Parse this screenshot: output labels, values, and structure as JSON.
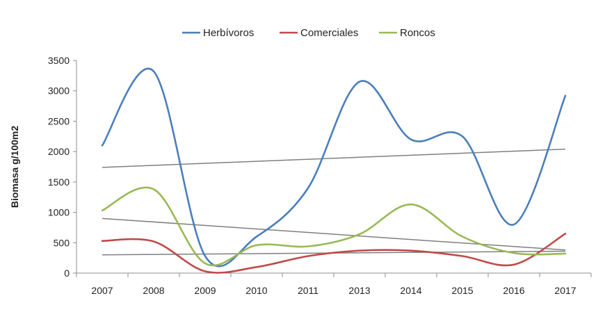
{
  "chart_data": {
    "type": "line",
    "title": "",
    "xlabel": "",
    "ylabel": "Biomasa g/100m2",
    "ylim": [
      0,
      3500
    ],
    "yticks": [
      0,
      500,
      1000,
      1500,
      2000,
      2500,
      3000,
      3500
    ],
    "categories": [
      "2007",
      "2008",
      "2009",
      "2010",
      "2011",
      "2013",
      "2014",
      "2015",
      "2016",
      "2017"
    ],
    "grid": false,
    "legend": "top",
    "series": [
      {
        "name": "Herbívoros",
        "color": "#4a7ebb",
        "smooth": true,
        "values": [
          2100,
          3320,
          280,
          600,
          1400,
          3150,
          2200,
          2250,
          800,
          2920
        ]
      },
      {
        "name": "Comerciales",
        "color": "#be4b48",
        "smooth": true,
        "values": [
          530,
          520,
          30,
          100,
          280,
          370,
          370,
          280,
          140,
          650
        ]
      },
      {
        "name": "Roncos",
        "color": "#98b954",
        "smooth": true,
        "values": [
          1030,
          1380,
          160,
          460,
          440,
          640,
          1130,
          600,
          330,
          320
        ]
      }
    ],
    "trendlines": [
      {
        "series": "Herbívoros",
        "color": "#7f7f7f",
        "start": 1740,
        "end": 2040
      },
      {
        "series": "Comerciales",
        "color": "#7f7f7f",
        "start": 300,
        "end": 360
      },
      {
        "series": "Roncos",
        "color": "#7f7f7f",
        "start": 900,
        "end": 380
      }
    ]
  }
}
